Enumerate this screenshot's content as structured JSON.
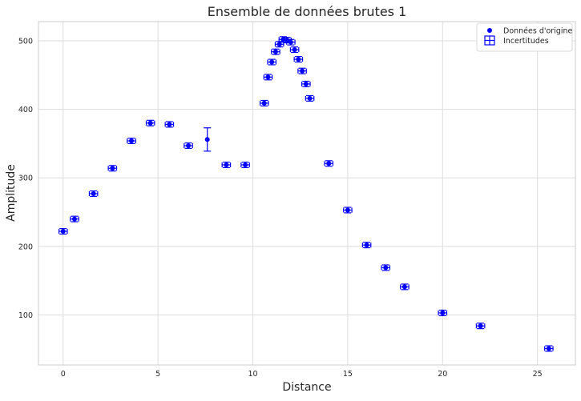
{
  "chart_data": {
    "type": "scatter",
    "title": "Ensemble de données brutes 1",
    "xlabel": "Distance",
    "ylabel": "Amplitude",
    "xlim": [
      -1.3,
      27
    ],
    "ylim": [
      27,
      528
    ],
    "xticks": [
      0,
      5,
      10,
      15,
      20,
      25
    ],
    "yticks": [
      100,
      200,
      300,
      400,
      500
    ],
    "grid": true,
    "legend_position": "top-right",
    "color": "#0000ff",
    "legend": [
      {
        "label": "Données d'origine",
        "marker": "dot"
      },
      {
        "label": "Incertitudes",
        "marker": "errorbar"
      }
    ],
    "series": [
      {
        "name": "Données d'origine",
        "points": [
          {
            "x": 0.0,
            "y": 222,
            "xerr": 0.22,
            "yerr": 4
          },
          {
            "x": 0.6,
            "y": 240,
            "xerr": 0.22,
            "yerr": 4
          },
          {
            "x": 1.6,
            "y": 277,
            "xerr": 0.22,
            "yerr": 4
          },
          {
            "x": 2.6,
            "y": 314,
            "xerr": 0.22,
            "yerr": 4
          },
          {
            "x": 3.6,
            "y": 354,
            "xerr": 0.22,
            "yerr": 4
          },
          {
            "x": 4.6,
            "y": 380,
            "xerr": 0.22,
            "yerr": 4
          },
          {
            "x": 5.6,
            "y": 378,
            "xerr": 0.22,
            "yerr": 4
          },
          {
            "x": 6.6,
            "y": 347,
            "xerr": 0.22,
            "yerr": 4
          },
          {
            "x": 7.6,
            "y": 356,
            "xerr": 0.0,
            "yerr": 17
          },
          {
            "x": 8.6,
            "y": 319,
            "xerr": 0.22,
            "yerr": 4
          },
          {
            "x": 9.6,
            "y": 319,
            "xerr": 0.22,
            "yerr": 4
          },
          {
            "x": 10.6,
            "y": 409,
            "xerr": 0.22,
            "yerr": 4
          },
          {
            "x": 10.8,
            "y": 447,
            "xerr": 0.22,
            "yerr": 4
          },
          {
            "x": 11.0,
            "y": 469,
            "xerr": 0.22,
            "yerr": 4
          },
          {
            "x": 11.2,
            "y": 484,
            "xerr": 0.22,
            "yerr": 4
          },
          {
            "x": 11.4,
            "y": 495,
            "xerr": 0.22,
            "yerr": 4
          },
          {
            "x": 11.6,
            "y": 502,
            "xerr": 0.22,
            "yerr": 4
          },
          {
            "x": 11.8,
            "y": 501,
            "xerr": 0.22,
            "yerr": 4
          },
          {
            "x": 12.0,
            "y": 498,
            "xerr": 0.22,
            "yerr": 4
          },
          {
            "x": 12.2,
            "y": 487,
            "xerr": 0.22,
            "yerr": 4
          },
          {
            "x": 12.4,
            "y": 473,
            "xerr": 0.22,
            "yerr": 4
          },
          {
            "x": 12.6,
            "y": 456,
            "xerr": 0.22,
            "yerr": 4
          },
          {
            "x": 12.8,
            "y": 437,
            "xerr": 0.22,
            "yerr": 4
          },
          {
            "x": 13.0,
            "y": 416,
            "xerr": 0.22,
            "yerr": 4
          },
          {
            "x": 14.0,
            "y": 321,
            "xerr": 0.22,
            "yerr": 4
          },
          {
            "x": 15.0,
            "y": 253,
            "xerr": 0.22,
            "yerr": 4
          },
          {
            "x": 16.0,
            "y": 202,
            "xerr": 0.22,
            "yerr": 4
          },
          {
            "x": 17.0,
            "y": 169,
            "xerr": 0.22,
            "yerr": 4
          },
          {
            "x": 18.0,
            "y": 141,
            "xerr": 0.22,
            "yerr": 4
          },
          {
            "x": 20.0,
            "y": 103,
            "xerr": 0.22,
            "yerr": 4
          },
          {
            "x": 22.0,
            "y": 84,
            "xerr": 0.22,
            "yerr": 4
          },
          {
            "x": 25.6,
            "y": 51,
            "xerr": 0.22,
            "yerr": 4
          }
        ]
      }
    ]
  }
}
